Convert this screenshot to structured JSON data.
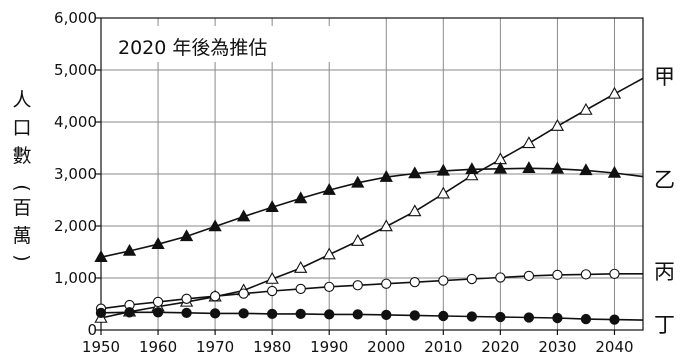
{
  "chart_data": {
    "type": "line",
    "title": "2020 年後為推估",
    "ylabel": "人口數(百萬)",
    "xlabel": "",
    "xlim": [
      1950,
      2045
    ],
    "ylim": [
      0,
      6000
    ],
    "grid": true,
    "x_ticks": [
      1950,
      1960,
      1970,
      1980,
      1990,
      2000,
      2010,
      2020,
      2030,
      2040
    ],
    "x_tick_labels": [
      "1950",
      "1960",
      "1970",
      "1980",
      "1990",
      "2000",
      "2010",
      "2020",
      "2030",
      "2040"
    ],
    "y_ticks": [
      0,
      1000,
      2000,
      3000,
      4000,
      5000,
      6000
    ],
    "y_tick_labels": [
      "0",
      "1,000",
      "2,000",
      "3,000",
      "4,000",
      "5,000",
      "6,000"
    ],
    "ylabel_parts": {
      "chars": [
        "人",
        "口",
        "數"
      ],
      "unit_open": "(",
      "unit_chars": [
        "百",
        "萬"
      ],
      "unit_close": ")"
    },
    "series": [
      {
        "name": "甲",
        "marker": "open-triangle",
        "x": [
          1950,
          1955,
          1960,
          1965,
          1970,
          1975,
          1980,
          1985,
          1990,
          1995,
          2000,
          2005,
          2010,
          2015,
          2020,
          2025,
          2030,
          2035,
          2040,
          2045
        ],
        "values": [
          230,
          350,
          450,
          540,
          640,
          760,
          980,
          1190,
          1450,
          1710,
          1990,
          2280,
          2620,
          2970,
          3280,
          3590,
          3920,
          4230,
          4540,
          4840
        ]
      },
      {
        "name": "乙",
        "marker": "filled-triangle",
        "x": [
          1950,
          1955,
          1960,
          1965,
          1970,
          1975,
          1980,
          1985,
          1990,
          1995,
          2000,
          2005,
          2010,
          2015,
          2020,
          2025,
          2030,
          2035,
          2040,
          2045
        ],
        "values": [
          1400,
          1520,
          1650,
          1800,
          1990,
          2180,
          2360,
          2530,
          2690,
          2830,
          2940,
          3010,
          3060,
          3090,
          3100,
          3110,
          3100,
          3070,
          3020,
          2950
        ]
      },
      {
        "name": "丙",
        "marker": "open-circle",
        "x": [
          1950,
          1955,
          1960,
          1965,
          1970,
          1975,
          1980,
          1985,
          1990,
          1995,
          2000,
          2005,
          2010,
          2015,
          2020,
          2025,
          2030,
          2035,
          2040,
          2045
        ],
        "values": [
          410,
          480,
          540,
          600,
          650,
          700,
          750,
          790,
          830,
          860,
          890,
          920,
          950,
          980,
          1010,
          1040,
          1060,
          1070,
          1080,
          1080
        ]
      },
      {
        "name": "丁",
        "marker": "filled-circle",
        "x": [
          1950,
          1955,
          1960,
          1965,
          1970,
          1975,
          1980,
          1985,
          1990,
          1995,
          2000,
          2005,
          2010,
          2015,
          2020,
          2025,
          2030,
          2035,
          2040,
          2045
        ],
        "values": [
          330,
          340,
          340,
          330,
          320,
          320,
          310,
          310,
          300,
          300,
          290,
          280,
          270,
          260,
          250,
          240,
          230,
          210,
          200,
          190
        ]
      }
    ]
  }
}
